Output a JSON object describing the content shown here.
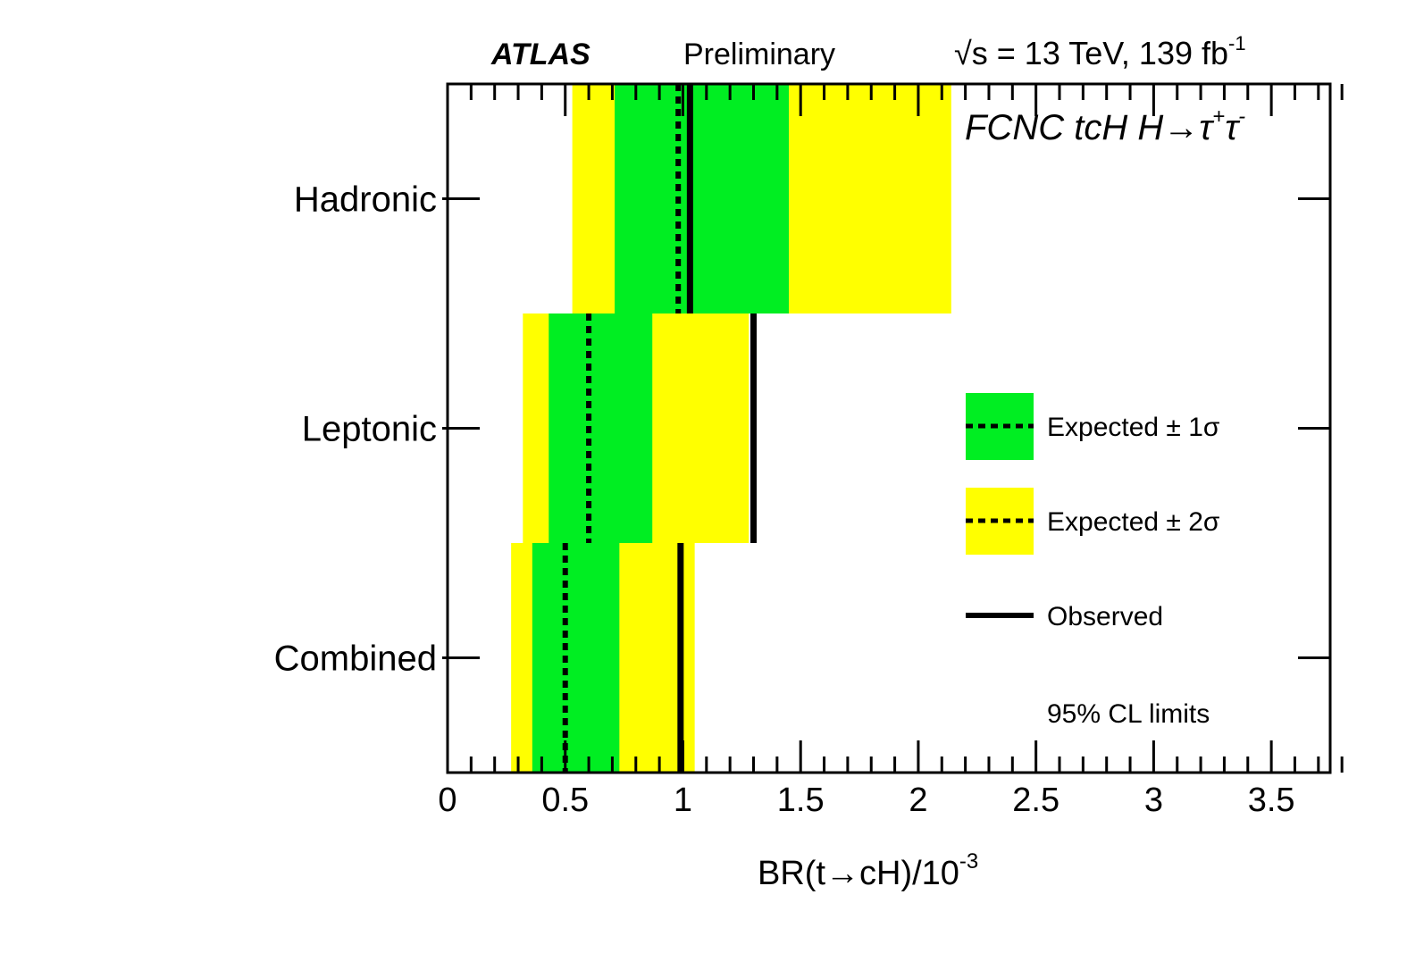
{
  "header": {
    "experiment": "ATLAS",
    "status": "Preliminary",
    "energy_sqrt": "√",
    "energy_rest": "s = 13 TeV, 139 fb",
    "lumi_exponent": "-1"
  },
  "process_label": {
    "main": "FCNC tcH H→τ",
    "sup1": "+",
    "tau2": "τ",
    "sup2": "-"
  },
  "colors": {
    "one_sigma": "#00ee22",
    "two_sigma": "#ffff00",
    "line": "#000000"
  },
  "chart_data": {
    "type": "limit-bands",
    "xlabel_main": "BR(t→cH)/10",
    "xlabel_exp": "-3",
    "xlim": [
      0,
      3.75
    ],
    "xticks": [
      0,
      0.5,
      1,
      1.5,
      2,
      2.5,
      3,
      3.5
    ],
    "xtick_labels": [
      "0",
      "0.5",
      "1",
      "1.5",
      "2",
      "2.5",
      "3",
      "3.5"
    ],
    "categories": [
      "Hadronic",
      "Leptonic",
      "Combined"
    ],
    "expected": [
      0.98,
      0.6,
      0.5
    ],
    "observed": [
      1.03,
      1.3,
      0.99
    ],
    "one_sigma": [
      [
        0.71,
        1.45
      ],
      [
        0.43,
        0.87
      ],
      [
        0.36,
        0.73
      ]
    ],
    "two_sigma": [
      [
        0.53,
        2.14
      ],
      [
        0.32,
        1.28
      ],
      [
        0.27,
        1.05
      ]
    ],
    "legend": {
      "one_sigma": "Expected ± 1σ",
      "two_sigma": "Expected ± 2σ",
      "observed": "Observed",
      "placement": "right"
    },
    "note": "95% CL limits"
  }
}
